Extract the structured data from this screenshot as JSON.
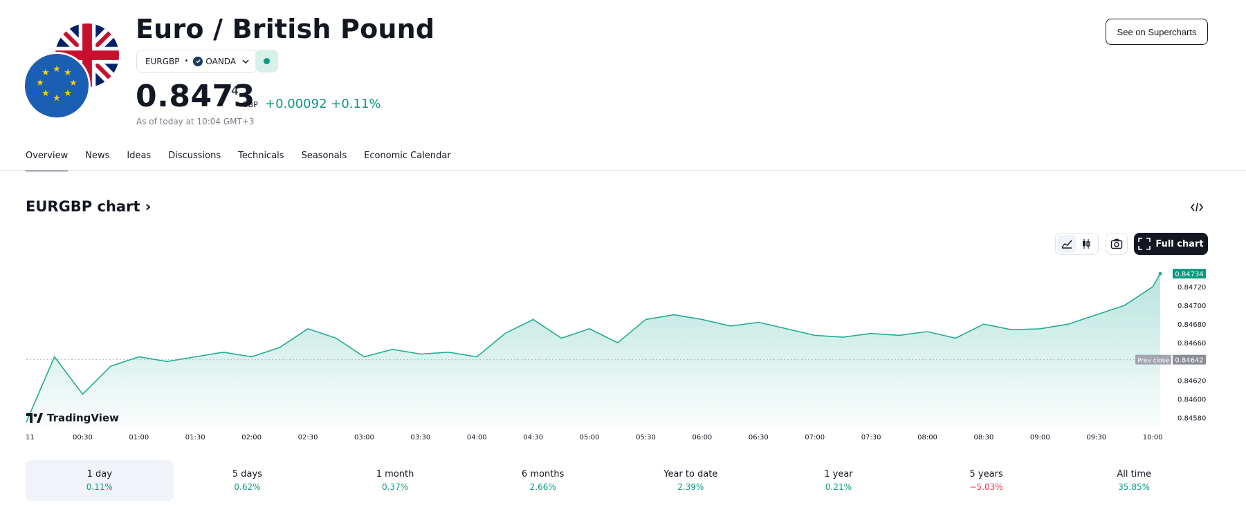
{
  "symbol": {
    "name": "Euro / British Pound",
    "ticker": "EURGBP",
    "exchange": "OANDA",
    "price_main": "0.8473",
    "price_sup": "4",
    "currency": "GBP",
    "change": "+0.00092 +0.11%",
    "as_of": "As of today at 10:04 GMT+3",
    "market_status": "open"
  },
  "header": {
    "see_button": "See on Supercharts"
  },
  "tabs": [
    {
      "label": "Overview",
      "active": true
    },
    {
      "label": "News"
    },
    {
      "label": "Ideas"
    },
    {
      "label": "Discussions"
    },
    {
      "label": "Technicals"
    },
    {
      "label": "Seasonals"
    },
    {
      "label": "Economic Calendar"
    }
  ],
  "chart_section": {
    "title": "EURGBP chart",
    "full_chart_label": "Full chart",
    "brand": "TradingView",
    "prev_close_label": "Prev close"
  },
  "chart_data": {
    "type": "area",
    "x_ticks": [
      "11",
      "00:30",
      "01:00",
      "01:30",
      "02:00",
      "02:30",
      "03:00",
      "03:30",
      "04:00",
      "04:30",
      "05:00",
      "05:30",
      "06:00",
      "06:30",
      "07:00",
      "07:30",
      "08:00",
      "08:30",
      "09:00",
      "09:30",
      "10:00"
    ],
    "y_ticks": [
      "0.84580",
      "0.84600",
      "0.84620",
      "0.84640",
      "0.84660",
      "0.84680",
      "0.84700",
      "0.84720"
    ],
    "ylim": [
      0.8457,
      0.8474
    ],
    "last_price": 0.84734,
    "last_price_label": "0.84734",
    "prev_close": 0.84642,
    "prev_close_label": "0.84642",
    "series": [
      {
        "x": [
          "00:00",
          "00:15",
          "00:30",
          "00:45",
          "01:00",
          "01:15",
          "01:30",
          "01:45",
          "02:00",
          "02:15",
          "02:30",
          "02:45",
          "03:00",
          "03:15",
          "03:30",
          "03:45",
          "04:00",
          "04:15",
          "04:30",
          "04:45",
          "05:00",
          "05:15",
          "05:30",
          "05:45",
          "06:00",
          "06:15",
          "06:30",
          "06:45",
          "07:00",
          "07:15",
          "07:30",
          "07:45",
          "08:00",
          "08:15",
          "08:30",
          "08:45",
          "09:00",
          "09:15",
          "09:30",
          "09:45",
          "10:00",
          "10:04"
        ],
        "values": [
          0.84575,
          0.84645,
          0.84605,
          0.84635,
          0.84645,
          0.8464,
          0.84645,
          0.8465,
          0.84645,
          0.84655,
          0.84675,
          0.84665,
          0.84645,
          0.84653,
          0.84648,
          0.8465,
          0.84645,
          0.8467,
          0.84685,
          0.84665,
          0.84675,
          0.8466,
          0.84685,
          0.8469,
          0.84685,
          0.84678,
          0.84682,
          0.84675,
          0.84668,
          0.84666,
          0.8467,
          0.84668,
          0.84672,
          0.84665,
          0.8468,
          0.84674,
          0.84675,
          0.8468,
          0.8469,
          0.847,
          0.8472,
          0.84734
        ]
      }
    ],
    "colors": {
      "line": "#22ab94",
      "last_price": "#089981",
      "prev_close": "#787b86"
    }
  },
  "periods": [
    {
      "label": "1 day",
      "value": "0.11%",
      "sign": "pos",
      "active": true
    },
    {
      "label": "5 days",
      "value": "0.62%",
      "sign": "pos"
    },
    {
      "label": "1 month",
      "value": "0.37%",
      "sign": "pos"
    },
    {
      "label": "6 months",
      "value": "2.66%",
      "sign": "pos"
    },
    {
      "label": "Year to date",
      "value": "2.39%",
      "sign": "pos"
    },
    {
      "label": "1 year",
      "value": "0.21%",
      "sign": "pos"
    },
    {
      "label": "5 years",
      "value": "−5.03%",
      "sign": "neg"
    },
    {
      "label": "All time",
      "value": "35.85%",
      "sign": "pos"
    }
  ]
}
